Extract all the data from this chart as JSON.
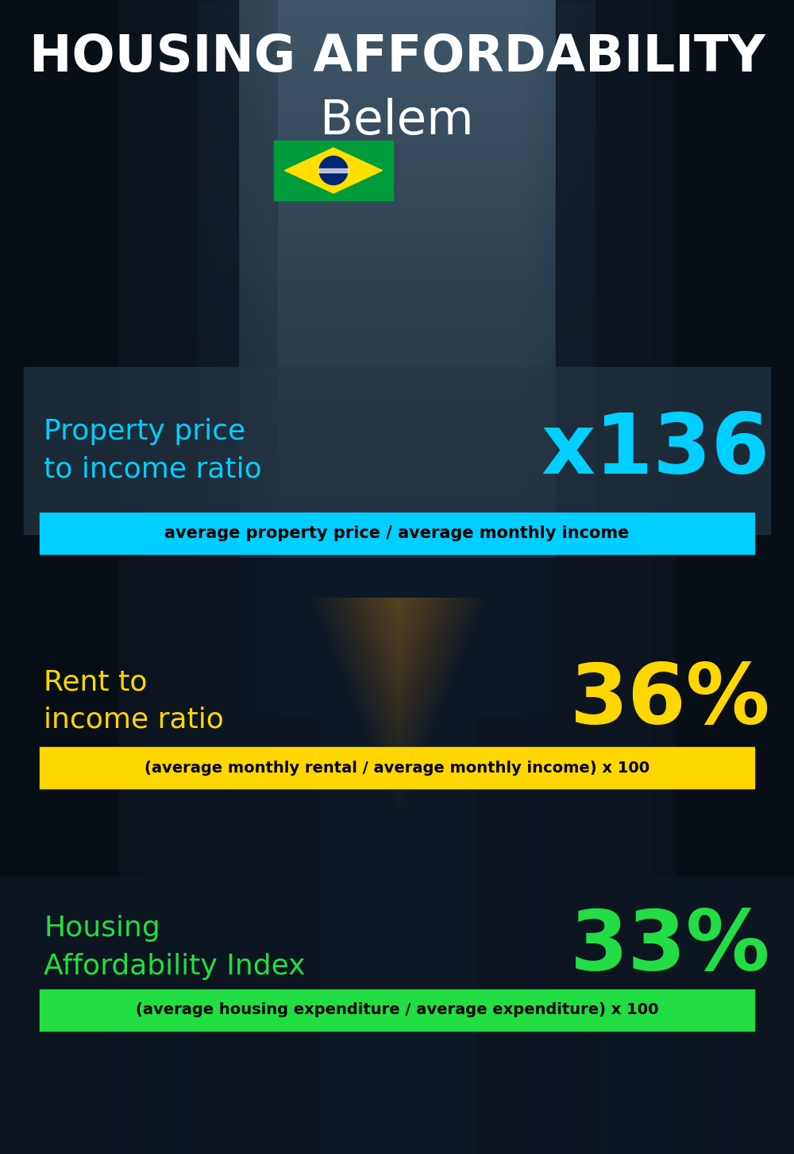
{
  "title_line1": "HOUSING AFFORDABILITY",
  "title_line2": "Belem",
  "section1_label": "Property price\nto income ratio",
  "section1_value": "x136",
  "section1_label_color": "#00cfff",
  "section1_value_color": "#00cfff",
  "section1_bar_text": "average property price / average monthly income",
  "section1_bar_color": "#00cfff",
  "section1_bar_text_color": "#000000",
  "section2_label": "Rent to\nincome ratio",
  "section2_value": "36%",
  "section2_label_color": "#ffd700",
  "section2_value_color": "#ffd700",
  "section2_bar_text": "(average monthly rental / average monthly income) x 100",
  "section2_bar_color": "#ffd700",
  "section2_bar_text_color": "#000000",
  "section3_label": "Housing\nAffordability Index",
  "section3_value": "33%",
  "section3_label_color": "#22dd44",
  "section3_value_color": "#22dd44",
  "section3_bar_text": "(average housing expenditure / average expenditure) x 100",
  "section3_bar_color": "#22dd44",
  "section3_bar_text_color": "#000000",
  "title1_color": "#ffffff",
  "title2_color": "#ffffff",
  "bg_color": "#0a1520",
  "fig_width": 10.0,
  "fig_height": 14.52
}
